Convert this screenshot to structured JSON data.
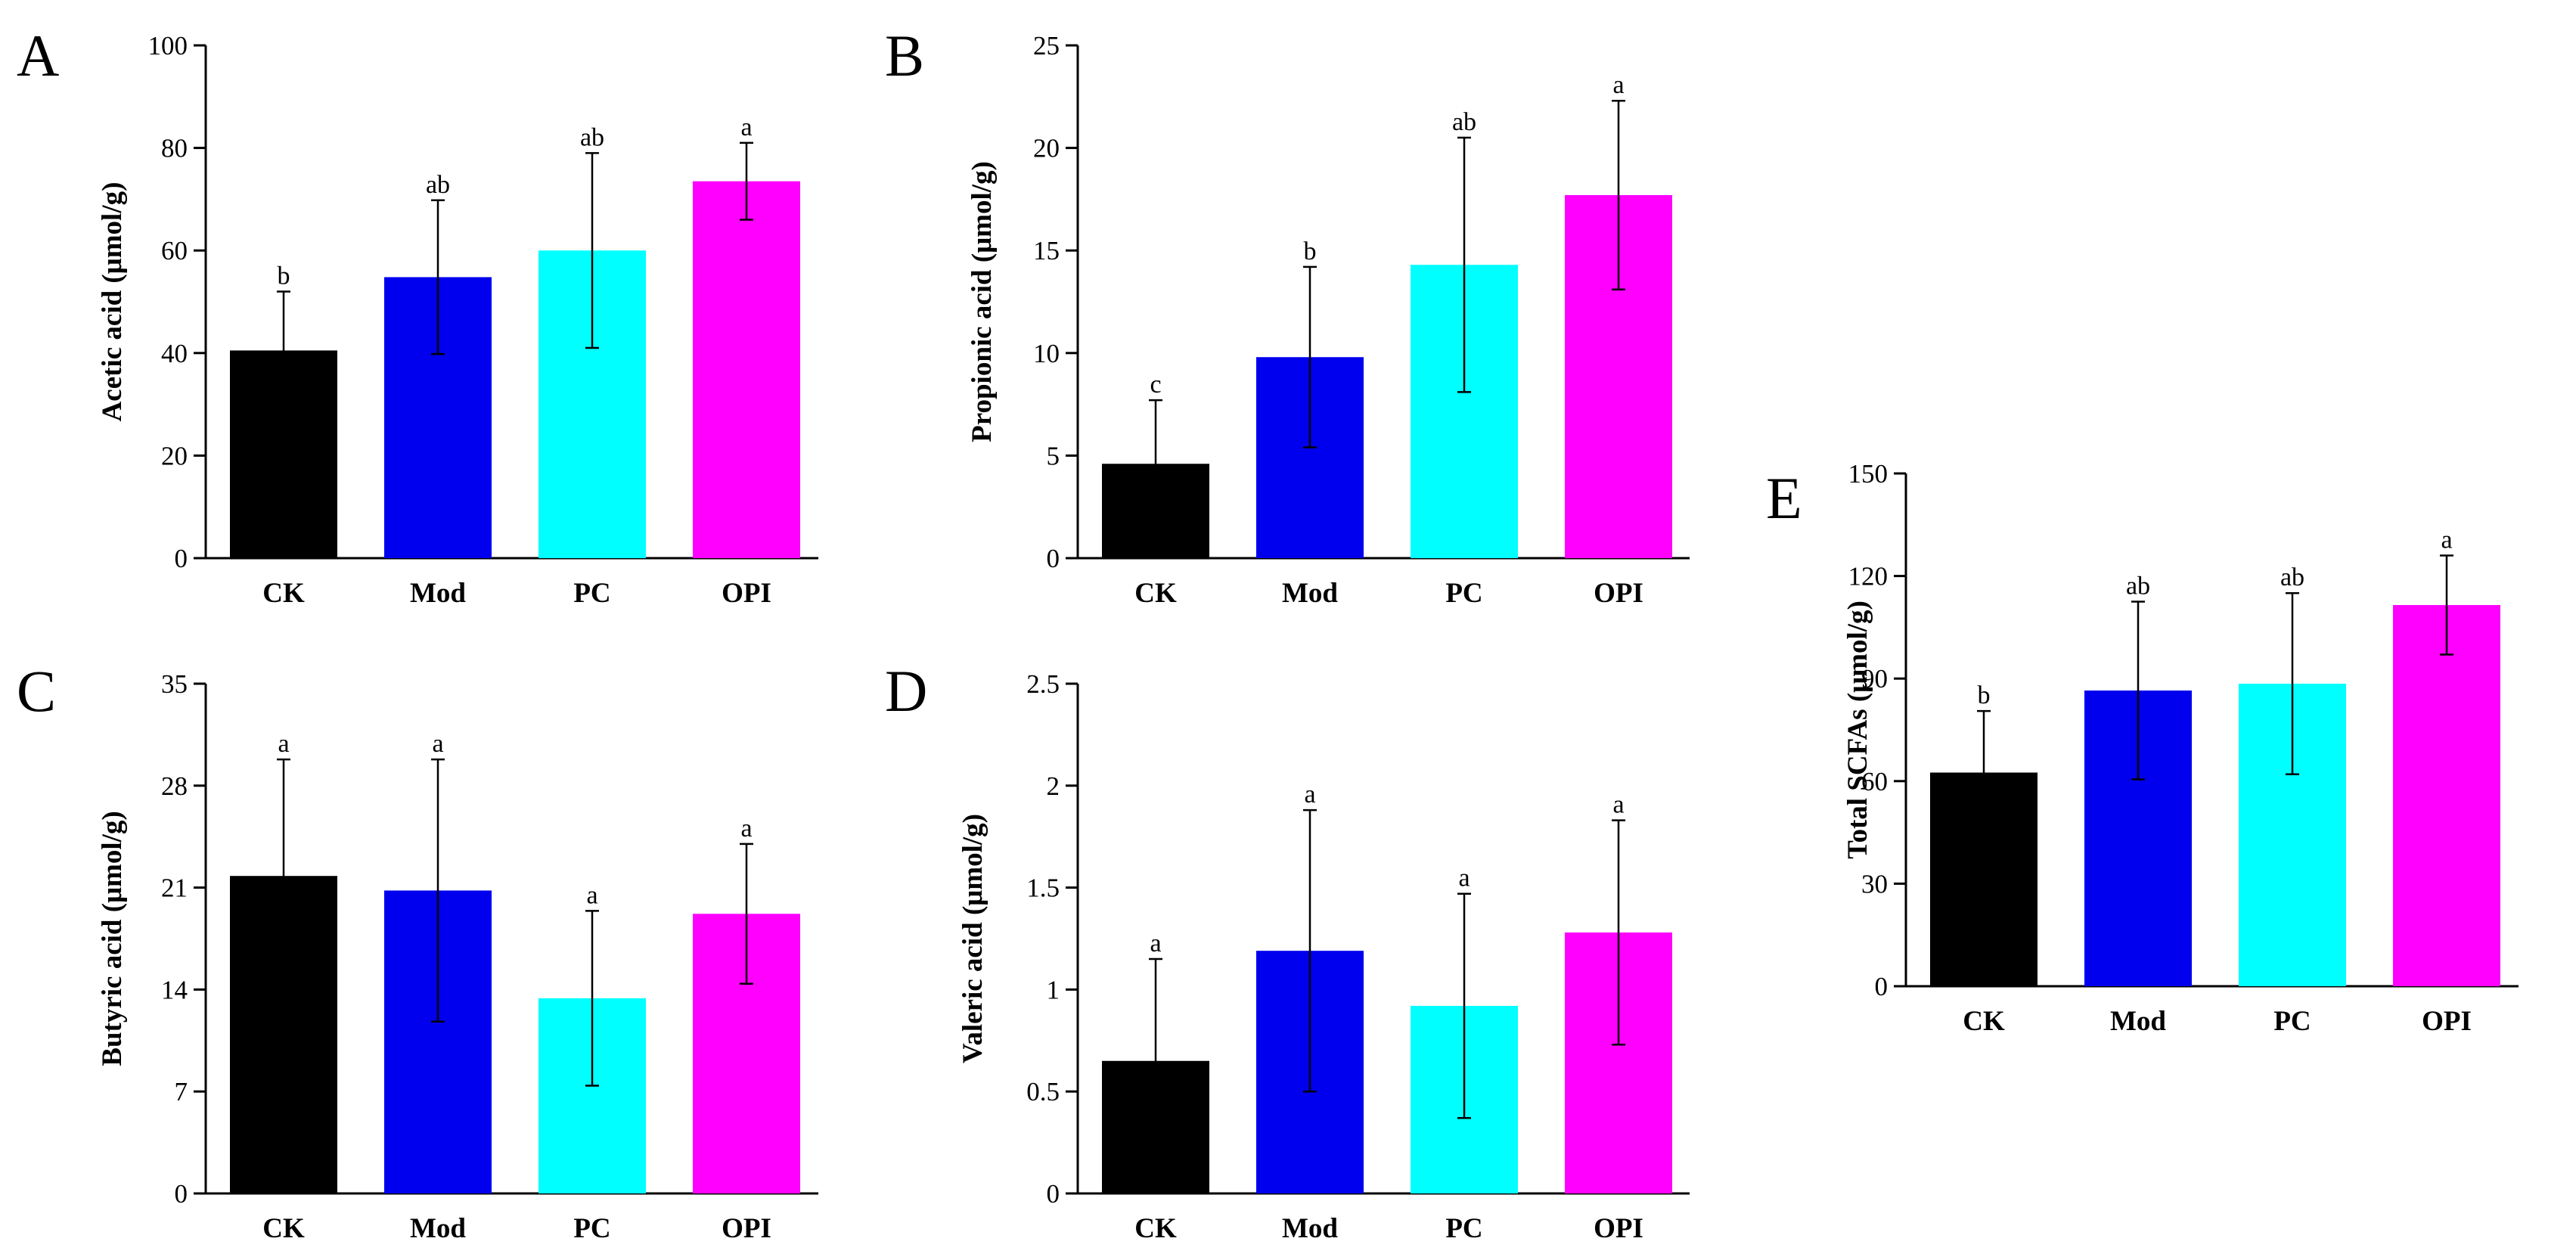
{
  "chart_data": [
    {
      "panel": "A",
      "type": "bar",
      "ylabel": "Acetic acid (μmol/g)",
      "ylim": [
        0,
        100
      ],
      "yticks": [
        "0",
        "20",
        "40",
        "60",
        "80",
        "100"
      ],
      "categories": [
        "CK",
        "Mod",
        "PC",
        "OPI"
      ],
      "values": [
        40.5,
        54.8,
        60.0,
        73.5
      ],
      "errors": [
        11.5,
        15.0,
        19.0,
        7.5
      ],
      "labels": [
        "b",
        "ab",
        "ab",
        "a"
      ],
      "colors": [
        "#000000",
        "#0000ee",
        "#00ffff",
        "#ff00ff"
      ]
    },
    {
      "panel": "B",
      "type": "bar",
      "ylabel": "Propionic acid (μmol/g)",
      "ylim": [
        0,
        25
      ],
      "yticks": [
        "0",
        "5",
        "10",
        "15",
        "20",
        "25"
      ],
      "categories": [
        "CK",
        "Mod",
        "PC",
        "OPI"
      ],
      "values": [
        4.6,
        9.8,
        14.3,
        17.7
      ],
      "errors": [
        3.1,
        4.4,
        6.2,
        4.6
      ],
      "labels": [
        "c",
        "b",
        "ab",
        "a"
      ],
      "colors": [
        "#000000",
        "#0000ee",
        "#00ffff",
        "#ff00ff"
      ]
    },
    {
      "panel": "C",
      "type": "bar",
      "ylabel": "Butyric acid (μmol/g)",
      "ylim": [
        0,
        35
      ],
      "yticks": [
        "0",
        "7",
        "14",
        "21",
        "28",
        "35"
      ],
      "categories": [
        "CK",
        "Mod",
        "PC",
        "OPI"
      ],
      "values": [
        21.8,
        20.8,
        13.4,
        19.2
      ],
      "errors": [
        8.0,
        9.0,
        6.0,
        4.8
      ],
      "labels": [
        "a",
        "a",
        "a",
        "a"
      ],
      "colors": [
        "#000000",
        "#0000ee",
        "#00ffff",
        "#ff00ff"
      ]
    },
    {
      "panel": "D",
      "type": "bar",
      "ylabel": "Valeric acid (μmol/g)",
      "ylim": [
        0,
        2.5
      ],
      "yticks": [
        "0",
        "0.5",
        "1",
        "1.5",
        "2",
        "2.5"
      ],
      "categories": [
        "CK",
        "Mod",
        "PC",
        "OPI"
      ],
      "values": [
        0.65,
        1.19,
        0.92,
        1.28
      ],
      "errors": [
        0.5,
        0.69,
        0.55,
        0.55
      ],
      "labels": [
        "a",
        "a",
        "a",
        "a"
      ],
      "colors": [
        "#000000",
        "#0000ee",
        "#00ffff",
        "#ff00ff"
      ]
    },
    {
      "panel": "E",
      "type": "bar",
      "ylabel": "Total SCFAs (μmol/g)",
      "ylim": [
        0,
        150
      ],
      "yticks": [
        "0",
        "30",
        "60",
        "90",
        "120",
        "150"
      ],
      "categories": [
        "CK",
        "Mod",
        "PC",
        "OPI"
      ],
      "values": [
        62.5,
        86.5,
        88.5,
        111.5
      ],
      "errors": [
        18.0,
        26.0,
        26.5,
        14.5
      ],
      "labels": [
        "b",
        "ab",
        "ab",
        "a"
      ],
      "colors": [
        "#000000",
        "#0000ee",
        "#00ffff",
        "#ff00ff"
      ]
    }
  ]
}
